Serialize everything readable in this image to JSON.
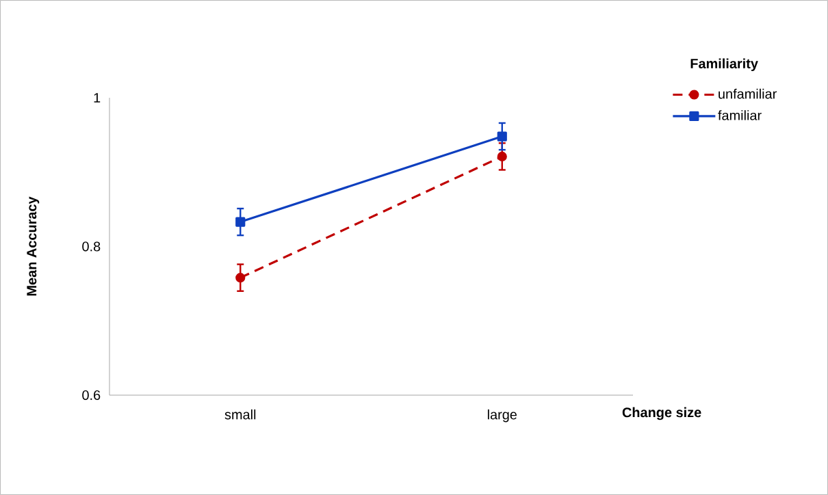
{
  "chart_data": {
    "type": "line",
    "xlabel": "Change size",
    "ylabel": "Mean  Accuracy",
    "legend_title": "Familiarity",
    "categories": [
      "small",
      "large"
    ],
    "series": [
      {
        "name": "unfamiliar",
        "color": "#c00000",
        "values": [
          0.758,
          0.921
        ],
        "errors": [
          0.018,
          0.018
        ],
        "marker": "circle",
        "line_style": "dashed"
      },
      {
        "name": "familiar",
        "color": "#0e3fbf",
        "values": [
          0.833,
          0.948
        ],
        "errors": [
          0.018,
          0.018
        ],
        "marker": "square",
        "line_style": "solid"
      }
    ],
    "ylim": [
      0.6,
      1
    ],
    "yticks": [
      0.6,
      0.8,
      1
    ],
    "legend": "top right",
    "grid": false
  }
}
